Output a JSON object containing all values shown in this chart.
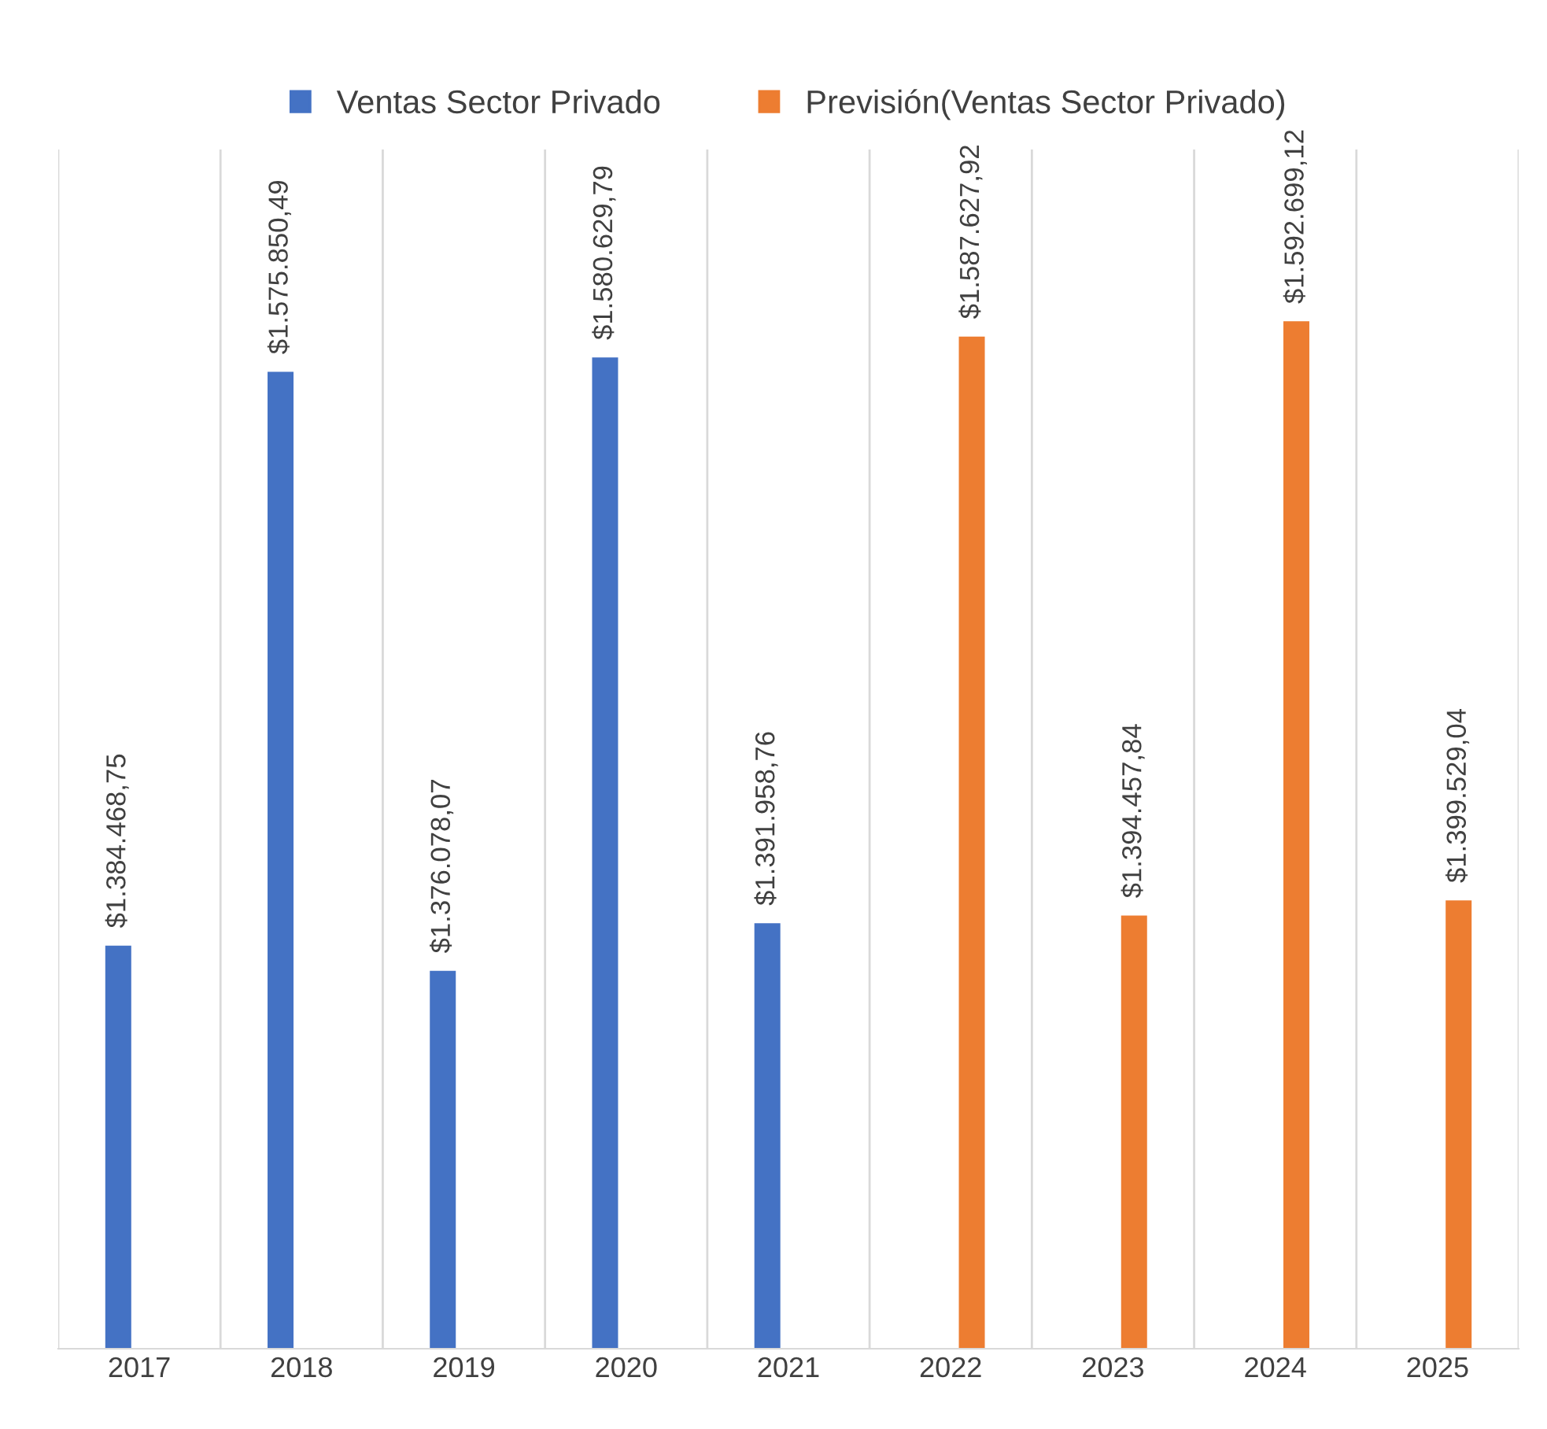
{
  "chart_data": {
    "type": "bar",
    "categories": [
      "2017",
      "2018",
      "2019",
      "2020",
      "2021",
      "2022",
      "2023",
      "2024",
      "2025"
    ],
    "series": [
      {
        "name": "Ventas Sector Privado",
        "color": "#4472c4",
        "values": [
          1384468.75,
          1575850.49,
          1376078.07,
          1580629.79,
          1391958.76,
          null,
          null,
          null,
          null
        ],
        "value_labels": [
          "$1.384.468,75",
          "$1.575.850,49",
          "$1.376.078,07",
          "$1.580.629,79",
          "$1.391.958,76",
          null,
          null,
          null,
          null
        ]
      },
      {
        "name": "Previsión(Ventas Sector Privado)",
        "color": "#ed7d31",
        "values": [
          null,
          null,
          null,
          null,
          null,
          1587627.92,
          1394457.84,
          1592699.12,
          1399529.04
        ],
        "value_labels": [
          null,
          null,
          null,
          null,
          null,
          "$1.587.627,92",
          "$1.394.457,84",
          "$1.592.699,12",
          "$1.399.529,04"
        ]
      }
    ],
    "ylim": [
      1250000,
      1650000
    ],
    "tick_labels": "x",
    "grid": "x",
    "legend": "top"
  }
}
